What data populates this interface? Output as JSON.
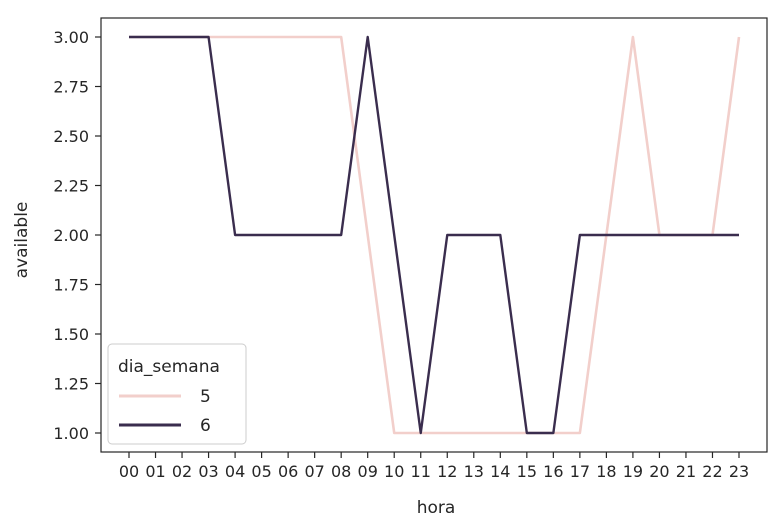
{
  "chart_data": {
    "type": "line",
    "xlabel": "hora",
    "ylabel": "available",
    "x": [
      "00",
      "01",
      "02",
      "03",
      "04",
      "05",
      "06",
      "07",
      "08",
      "09",
      "10",
      "11",
      "12",
      "13",
      "14",
      "15",
      "16",
      "17",
      "18",
      "19",
      "20",
      "21",
      "22",
      "23"
    ],
    "yticks": [
      "1.00",
      "1.25",
      "1.50",
      "1.75",
      "2.00",
      "2.25",
      "2.50",
      "2.75",
      "3.00"
    ],
    "ylim": [
      0.9,
      3.1
    ],
    "grid": false,
    "legend": {
      "title": "dia_semana",
      "placement": "lower-left"
    },
    "series": [
      {
        "name": "5",
        "color": "#f2cfcb",
        "values": [
          3,
          3,
          3,
          3,
          3,
          3,
          3,
          3,
          3,
          2,
          1,
          1,
          1,
          1,
          1,
          1,
          1,
          1,
          2,
          3,
          2,
          2,
          2,
          3
        ]
      },
      {
        "name": "6",
        "color": "#3a2d4e",
        "values": [
          3,
          3,
          3,
          3,
          2,
          2,
          2,
          2,
          2,
          3,
          2,
          1,
          2,
          2,
          2,
          1,
          1,
          2,
          2,
          2,
          2,
          2,
          2,
          2
        ]
      }
    ]
  }
}
